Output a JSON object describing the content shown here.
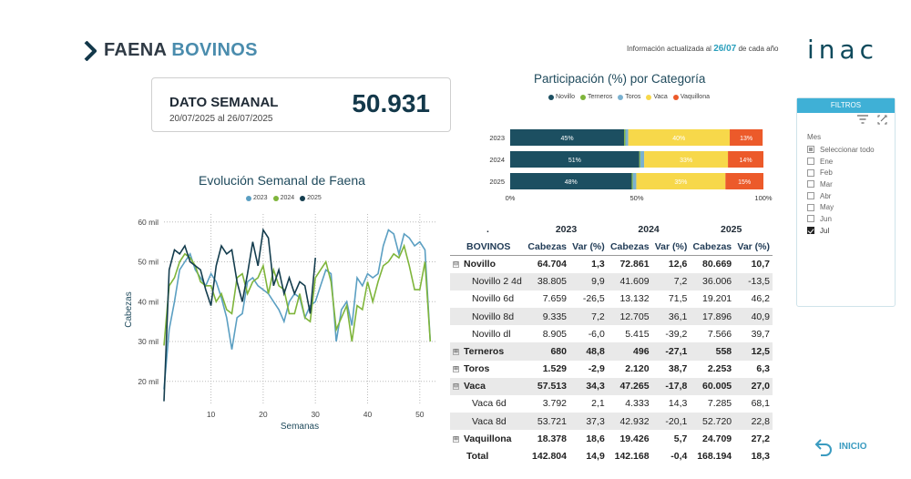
{
  "header": {
    "title_a": "FAENA",
    "title_b": "BOVINOS",
    "updated_prefix": "Información actualizada al",
    "updated_date": "26/07",
    "updated_suffix": "de cada año",
    "logo": "inac"
  },
  "card": {
    "label": "DATO SEMANAL",
    "range": "20/07/2025 al 26/07/2025",
    "value": "50.931"
  },
  "colors": {
    "y2023": "#5b9fc2",
    "y2024": "#7fb53b",
    "y2025": "#143d4e",
    "novillo": "#1c4f61",
    "terneros": "#7fb53b",
    "toros": "#7ab1d0",
    "vaca": "#f7d84a",
    "vaquillona": "#ec5a2a"
  },
  "chart_data": [
    {
      "type": "line",
      "title": "Evolución Semanal de Faena",
      "xlabel": "Semanas",
      "ylabel": "Cabezas",
      "y_ticks": [
        "20 mil",
        "30 mil",
        "40 mil",
        "50 mil",
        "60 mil"
      ],
      "x_ticks": [
        "10",
        "20",
        "30",
        "40",
        "50"
      ],
      "ylim": [
        14000,
        62000
      ],
      "xlim": [
        1,
        53
      ],
      "grid": true,
      "series": [
        {
          "name": "2023",
          "x": [
            1,
            2,
            3,
            4,
            5,
            6,
            7,
            8,
            9,
            10,
            11,
            12,
            13,
            14,
            15,
            16,
            17,
            18,
            19,
            20,
            21,
            22,
            23,
            24,
            25,
            26,
            27,
            28,
            29,
            30,
            31,
            32,
            33,
            34,
            35,
            36,
            37,
            38,
            39,
            40,
            41,
            42,
            43,
            44,
            45,
            46,
            47,
            48,
            49,
            50,
            51,
            52
          ],
          "values": [
            18000,
            33000,
            40000,
            48000,
            50000,
            52000,
            48000,
            46000,
            44000,
            47000,
            45000,
            41000,
            36000,
            28000,
            36000,
            37000,
            45000,
            46000,
            44000,
            43000,
            42000,
            40000,
            38000,
            35000,
            40000,
            42000,
            41000,
            36000,
            39000,
            40000,
            44000,
            48000,
            47000,
            30000,
            38000,
            40000,
            34000,
            46000,
            44000,
            47000,
            46000,
            47000,
            54000,
            58000,
            57000,
            52000,
            57000,
            56000,
            54000,
            55000,
            53000,
            30000
          ]
        },
        {
          "name": "2024",
          "x": [
            1,
            2,
            3,
            4,
            5,
            6,
            7,
            8,
            9,
            10,
            11,
            12,
            13,
            14,
            15,
            16,
            17,
            18,
            19,
            20,
            21,
            22,
            23,
            24,
            25,
            26,
            27,
            28,
            29,
            30,
            31,
            32,
            33,
            34,
            35,
            36,
            37,
            38,
            39,
            40,
            41,
            42,
            43,
            44,
            45,
            46,
            47,
            48,
            49,
            50,
            51,
            52
          ],
          "values": [
            29000,
            44000,
            46000,
            50000,
            52000,
            51000,
            49000,
            45000,
            44000,
            44000,
            40000,
            42000,
            38000,
            37000,
            46000,
            47000,
            42000,
            45000,
            46000,
            49000,
            42000,
            48000,
            44000,
            43000,
            37000,
            37000,
            42000,
            36000,
            35000,
            46000,
            48000,
            50000,
            45000,
            33000,
            36000,
            39000,
            30000,
            39000,
            38000,
            45000,
            40000,
            45000,
            49000,
            50000,
            52000,
            51000,
            54000,
            49000,
            43000,
            43000,
            50000,
            30000
          ]
        },
        {
          "name": "2025",
          "x": [
            1,
            2,
            3,
            4,
            5,
            6,
            7,
            8,
            9,
            10,
            11,
            12,
            13,
            14,
            15,
            16,
            17,
            18,
            19,
            20,
            21,
            22,
            23,
            24,
            25,
            26,
            27,
            28,
            29,
            30
          ],
          "values": [
            15000,
            48000,
            53000,
            52000,
            54000,
            50000,
            49000,
            48000,
            43000,
            39000,
            49000,
            54000,
            52000,
            53000,
            45000,
            40000,
            47000,
            55000,
            49000,
            58000,
            56000,
            44000,
            48000,
            42000,
            46000,
            42000,
            45000,
            44000,
            37000,
            51000
          ]
        }
      ]
    },
    {
      "type": "bar",
      "stacked": "100%",
      "title": "Participación (%) por Categoría",
      "categories": [
        "2023",
        "2024",
        "2025"
      ],
      "x_ticks": [
        "0%",
        "50%",
        "100%"
      ],
      "xlim": [
        0,
        100
      ],
      "legend": "top",
      "series": [
        {
          "name": "Novillo",
          "values": [
            45,
            51,
            48
          ]
        },
        {
          "name": "Terneros",
          "values": [
            0.5,
            0.4,
            0.4
          ]
        },
        {
          "name": "Toros",
          "values": [
            1.1,
            1.5,
            1.4
          ]
        },
        {
          "name": "Vaca",
          "values": [
            40.1,
            33.1,
            35.2
          ]
        },
        {
          "name": "Vaquillona",
          "values": [
            13,
            14,
            15
          ]
        }
      ],
      "data_labels": [
        [
          "45%",
          "",
          "",
          "40%",
          "13%"
        ],
        [
          "51%",
          "",
          "",
          "33%",
          "14%"
        ],
        [
          "48%",
          "",
          "",
          "35%",
          "15%"
        ]
      ]
    }
  ],
  "table": {
    "dot": ".",
    "years": [
      "2023",
      "2024",
      "2025"
    ],
    "col_label": "BOVINOS",
    "sub_headers": [
      "Cabezas",
      "Var (%)",
      "Cabezas",
      "Var (%)",
      "Cabezas",
      "Var (%)"
    ],
    "rows": [
      {
        "name": "Novillo",
        "vals": [
          "64.704",
          "1,3",
          "72.861",
          "12,6",
          "80.669",
          "10,7"
        ],
        "bold": true,
        "exp": "⊟",
        "shade": false
      },
      {
        "name": "Novillo 2 4d",
        "vals": [
          "38.805",
          "9,9",
          "41.609",
          "7,2",
          "36.006",
          "-13,5"
        ],
        "sub": true,
        "shade": true
      },
      {
        "name": "Novillo 6d",
        "vals": [
          "7.659",
          "-26,5",
          "13.132",
          "71,5",
          "19.201",
          "46,2"
        ],
        "sub": true,
        "shade": false
      },
      {
        "name": "Novillo 8d",
        "vals": [
          "9.335",
          "7,2",
          "12.705",
          "36,1",
          "17.896",
          "40,9"
        ],
        "sub": true,
        "shade": true
      },
      {
        "name": "Novillo dl",
        "vals": [
          "8.905",
          "-6,0",
          "5.415",
          "-39,2",
          "7.566",
          "39,7"
        ],
        "sub": true,
        "shade": false
      },
      {
        "name": "Terneros",
        "vals": [
          "680",
          "48,8",
          "496",
          "-27,1",
          "558",
          "12,5"
        ],
        "bold": true,
        "exp": "⊞",
        "shade": true
      },
      {
        "name": "Toros",
        "vals": [
          "1.529",
          "-2,9",
          "2.120",
          "38,7",
          "2.253",
          "6,3"
        ],
        "bold": true,
        "exp": "⊞",
        "shade": false
      },
      {
        "name": "Vaca",
        "vals": [
          "57.513",
          "34,3",
          "47.265",
          "-17,8",
          "60.005",
          "27,0"
        ],
        "bold": true,
        "exp": "⊟",
        "shade": true
      },
      {
        "name": "Vaca 6d",
        "vals": [
          "3.792",
          "2,1",
          "4.333",
          "14,3",
          "7.285",
          "68,1"
        ],
        "sub": true,
        "shade": false
      },
      {
        "name": "Vaca 8d",
        "vals": [
          "53.721",
          "37,3",
          "42.932",
          "-20,1",
          "52.720",
          "22,8"
        ],
        "sub": true,
        "shade": true
      },
      {
        "name": "Vaquillona",
        "vals": [
          "18.378",
          "18,6",
          "19.426",
          "5,7",
          "24.709",
          "27,2"
        ],
        "bold": true,
        "exp": "⊞",
        "shade": false
      },
      {
        "name": "Total",
        "vals": [
          "142.804",
          "14,9",
          "142.168",
          "-0,4",
          "168.194",
          "18,3"
        ],
        "bold": true,
        "shade": false
      }
    ]
  },
  "filters": {
    "title": "FILTROS",
    "field": "Mes",
    "options": [
      {
        "label": "Seleccionar todo",
        "state": "partial"
      },
      {
        "label": "Ene",
        "state": "off"
      },
      {
        "label": "Feb",
        "state": "off"
      },
      {
        "label": "Mar",
        "state": "off"
      },
      {
        "label": "Abr",
        "state": "off"
      },
      {
        "label": "May",
        "state": "off"
      },
      {
        "label": "Jun",
        "state": "off"
      },
      {
        "label": "Jul",
        "state": "on"
      }
    ]
  },
  "nav": {
    "inicio": "INICIO"
  }
}
